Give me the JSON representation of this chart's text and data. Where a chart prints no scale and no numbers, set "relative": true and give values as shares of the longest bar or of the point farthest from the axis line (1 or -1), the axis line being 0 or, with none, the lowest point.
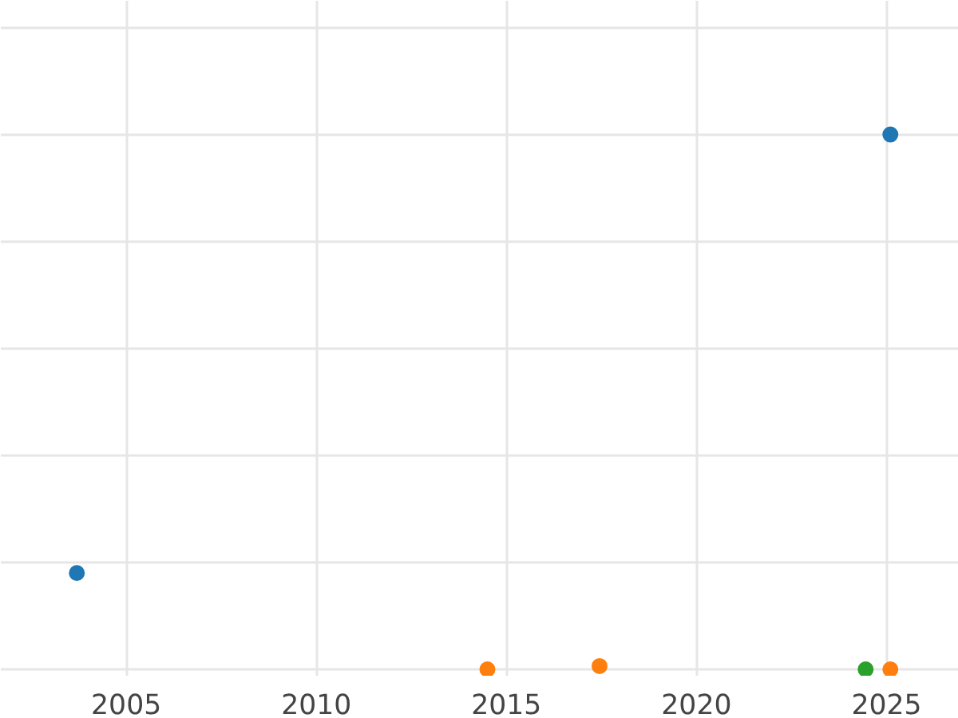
{
  "chart_data": {
    "type": "scatter",
    "relative": true,
    "grid": true,
    "marker": "circle",
    "xlim": [
      2001.7,
      2026.9
    ],
    "xticks": [
      2005,
      2010,
      2015,
      2020,
      2025
    ],
    "tick_labels": "x",
    "series": [
      {
        "color": "#1f77b4",
        "x": [
          2003.7,
          2025.1
        ],
        "values": [
          0.18,
          1
        ]
      },
      {
        "color": "#ff7f0e",
        "x": [
          2014.5,
          2017.45,
          2025.1
        ],
        "values": [
          0,
          0.006,
          0
        ]
      },
      {
        "color": "#2ca02c",
        "x": [
          2024.45
        ],
        "values": [
          0
        ]
      }
    ]
  }
}
